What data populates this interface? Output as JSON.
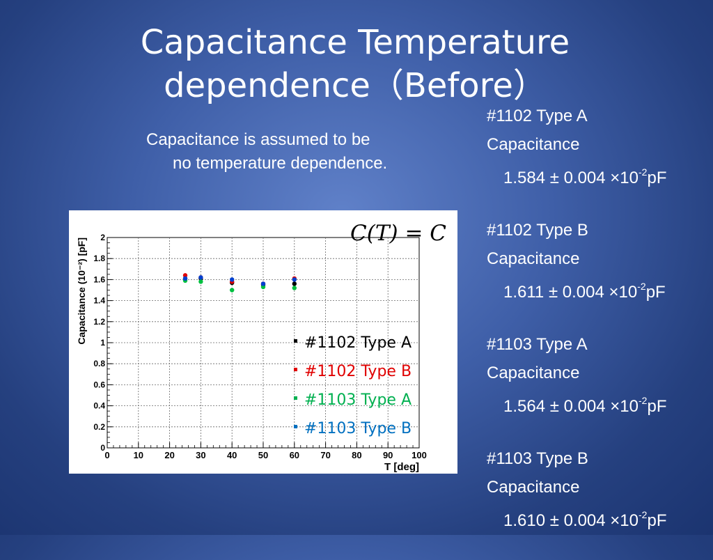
{
  "slide": {
    "title_line1": "Capacitance Temperature",
    "title_line2": "dependence（Before）",
    "note_line1": "Capacitance is assumed to be",
    "note_line2": "no temperature dependence.",
    "equation": "C(T) = C"
  },
  "results": [
    {
      "label": "#1102  Type A",
      "quantity": "Capacitance",
      "value": "1.584 ± 0.004 ×10",
      "exponent": "-2",
      "unit": "pF"
    },
    {
      "label": "#1102  Type B",
      "quantity": "Capacitance",
      "value": "1.611 ± 0.004 ×10",
      "exponent": "-2",
      "unit": "pF"
    },
    {
      "label": "#1103  Type A",
      "quantity": "Capacitance",
      "value": "1.564 ± 0.004 ×10",
      "exponent": "-2",
      "unit": "pF"
    },
    {
      "label": "#1103  Type B",
      "quantity": "Capacitance",
      "value": "1.610 ± 0.004 ×10",
      "exponent": "-2",
      "unit": "pF"
    }
  ],
  "chart_data": {
    "type": "scatter",
    "xlabel": "T [deg]",
    "ylabel": "Capacitance (10⁻²) [pF]",
    "xlim": [
      0,
      100
    ],
    "ylim": [
      0,
      2
    ],
    "grid": true,
    "legend_placement": "bottom-right",
    "x_ticks": [
      "0",
      "10",
      "20",
      "30",
      "40",
      "50",
      "60",
      "70",
      "80",
      "90",
      "100"
    ],
    "y_ticks": [
      "0",
      "0.2",
      "0.4",
      "0.6",
      "0.8",
      "1",
      "1.2",
      "1.4",
      "1.6",
      "1.8",
      "2"
    ],
    "series": [
      {
        "name": "#1102 Type A",
        "color": "#000000",
        "x": [
          25,
          30,
          40,
          50,
          60
        ],
        "y": [
          1.61,
          1.61,
          1.57,
          1.55,
          1.56
        ]
      },
      {
        "name": "#1102 Type B",
        "color": "#e00000",
        "x": [
          25,
          30,
          40,
          50,
          60
        ],
        "y": [
          1.64,
          1.62,
          1.58,
          1.56,
          1.61
        ]
      },
      {
        "name": "#1103 Type A",
        "color": "#00c040",
        "x": [
          25,
          30,
          40,
          50,
          60
        ],
        "y": [
          1.59,
          1.58,
          1.5,
          1.53,
          1.52
        ]
      },
      {
        "name": "#1103 Type B",
        "color": "#0040d0",
        "x": [
          25,
          30,
          40,
          50,
          60
        ],
        "y": [
          1.61,
          1.62,
          1.6,
          1.56,
          1.6
        ]
      }
    ],
    "legend_colors": [
      "#000000",
      "#e00000",
      "#00b050",
      "#0070c0"
    ]
  }
}
